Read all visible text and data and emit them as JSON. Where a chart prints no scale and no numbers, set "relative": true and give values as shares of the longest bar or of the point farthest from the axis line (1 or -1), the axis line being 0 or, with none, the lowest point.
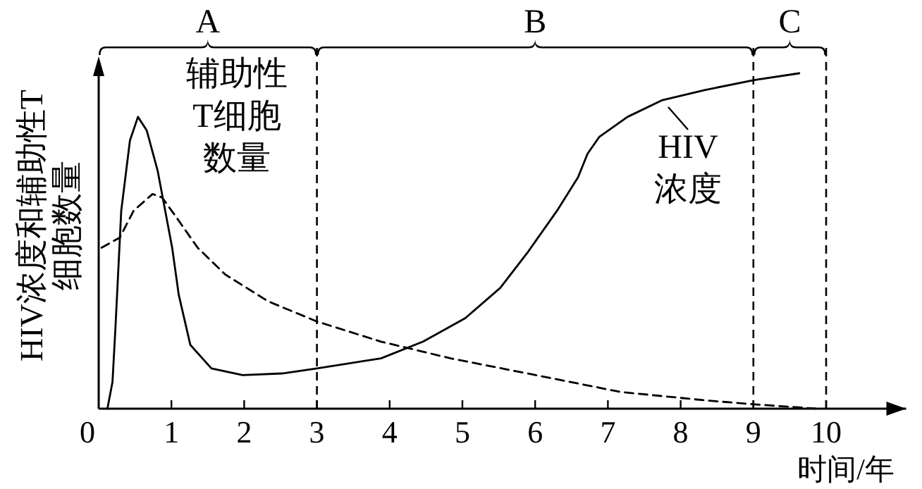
{
  "chart_data": {
    "type": "line",
    "relative": true,
    "xlabel": "时间/年",
    "ylabel": "HIV浓度和辅助性T细胞数量",
    "xlim": [
      0,
      11.1
    ],
    "xticks": [
      0,
      1,
      2,
      3,
      4,
      5,
      6,
      7,
      8,
      9,
      10
    ],
    "series": [
      {
        "name": "HIV浓度",
        "color": "#000000",
        "line_style": "solid",
        "x": [
          0.12,
          0.19,
          0.23,
          0.31,
          0.43,
          0.54,
          0.66,
          0.81,
          1.01,
          1.1,
          1.26,
          1.55,
          1.98,
          2.52,
          3.0,
          3.88,
          4.46,
          5.04,
          5.52,
          5.91,
          6.3,
          6.59,
          6.72,
          6.88,
          7.27,
          7.75,
          8.33,
          9.01,
          9.63
        ],
        "values": [
          0,
          0.08,
          0.24,
          0.59,
          0.8,
          0.87,
          0.83,
          0.71,
          0.48,
          0.34,
          0.19,
          0.12,
          0.1,
          0.105,
          0.12,
          0.15,
          0.2,
          0.27,
          0.36,
          0.47,
          0.59,
          0.69,
          0.76,
          0.81,
          0.87,
          0.92,
          0.95,
          0.98,
          1
        ]
      },
      {
        "name": "辅助性T细胞数量",
        "color": "#000000",
        "line_style": "dashed",
        "x": [
          0.04,
          0.29,
          0.48,
          0.74,
          0.87,
          1.07,
          1.36,
          1.74,
          2.33,
          3.0,
          3.88,
          4.84,
          6.01,
          7.17,
          8.33,
          9.01,
          9.88
        ],
        "values": [
          0.48,
          0.51,
          0.59,
          0.64,
          0.63,
          0.57,
          0.48,
          0.4,
          0.32,
          0.26,
          0.2,
          0.15,
          0.1,
          0.05,
          0.025,
          0.013,
          0
        ]
      }
    ],
    "ref_lines": [
      {
        "axis": "x",
        "value": 3,
        "line_style": "dashed"
      },
      {
        "axis": "x",
        "value": 9,
        "line_style": "dashed"
      },
      {
        "axis": "x",
        "value": 10,
        "line_style": "dashed"
      }
    ],
    "annotations": [
      "A",
      "B",
      "C"
    ]
  }
}
